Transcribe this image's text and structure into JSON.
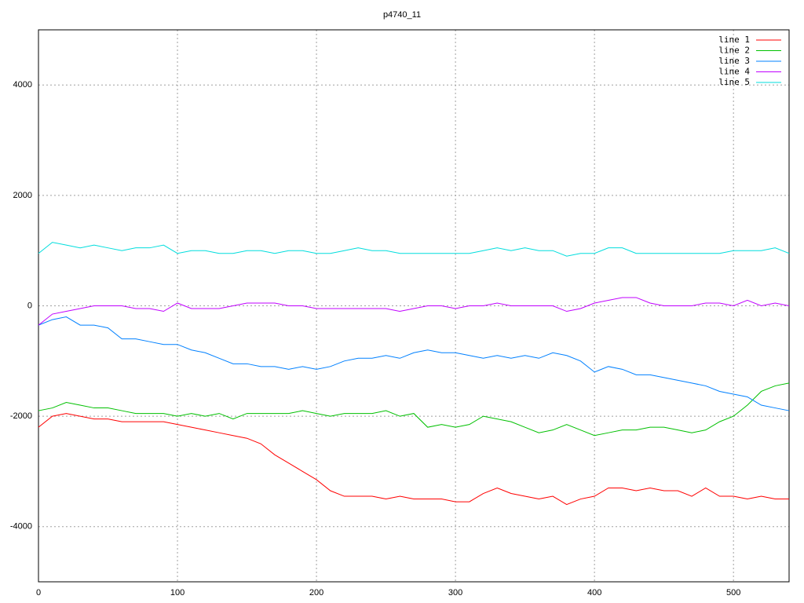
{
  "chart_data": {
    "type": "line",
    "title": "p4740_11",
    "x": [
      0,
      10,
      20,
      30,
      40,
      50,
      60,
      70,
      80,
      90,
      100,
      110,
      120,
      130,
      140,
      150,
      160,
      170,
      180,
      190,
      200,
      210,
      220,
      230,
      240,
      250,
      260,
      270,
      280,
      290,
      300,
      310,
      320,
      330,
      340,
      350,
      360,
      370,
      380,
      390,
      400,
      410,
      420,
      430,
      440,
      450,
      460,
      470,
      480,
      490,
      500,
      510,
      520,
      530,
      540
    ],
    "series": [
      {
        "name": "line 1",
        "color": "#ff0000",
        "values": [
          -2200,
          -2000,
          -1950,
          -2000,
          -2050,
          -2050,
          -2100,
          -2100,
          -2100,
          -2100,
          -2150,
          -2200,
          -2250,
          -2300,
          -2350,
          -2400,
          -2500,
          -2700,
          -2850,
          -3000,
          -3150,
          -3350,
          -3450,
          -3450,
          -3450,
          -3500,
          -3450,
          -3500,
          -3500,
          -3500,
          -3550,
          -3550,
          -3400,
          -3300,
          -3400,
          -3450,
          -3500,
          -3450,
          -3600,
          -3500,
          -3450,
          -3300,
          -3300,
          -3350,
          -3300,
          -3350,
          -3350,
          -3450,
          -3300,
          -3450,
          -3450,
          -3500,
          -3450,
          -3500,
          -3500
        ]
      },
      {
        "name": "line 2",
        "color": "#00c000",
        "values": [
          -1900,
          -1850,
          -1750,
          -1800,
          -1850,
          -1850,
          -1900,
          -1950,
          -1950,
          -1950,
          -2000,
          -1950,
          -2000,
          -1950,
          -2050,
          -1950,
          -1950,
          -1950,
          -1950,
          -1900,
          -1950,
          -2000,
          -1950,
          -1950,
          -1950,
          -1900,
          -2000,
          -1950,
          -2200,
          -2150,
          -2200,
          -2150,
          -2000,
          -2050,
          -2100,
          -2200,
          -2300,
          -2250,
          -2150,
          -2250,
          -2350,
          -2300,
          -2250,
          -2250,
          -2200,
          -2200,
          -2250,
          -2300,
          -2250,
          -2100,
          -2000,
          -1800,
          -1550,
          -1450,
          -1400
        ]
      },
      {
        "name": "line 3",
        "color": "#0080ff",
        "values": [
          -350,
          -250,
          -200,
          -350,
          -350,
          -400,
          -600,
          -600,
          -650,
          -700,
          -700,
          -800,
          -850,
          -950,
          -1050,
          -1050,
          -1100,
          -1100,
          -1150,
          -1100,
          -1150,
          -1100,
          -1000,
          -950,
          -950,
          -900,
          -950,
          -850,
          -800,
          -850,
          -850,
          -900,
          -950,
          -900,
          -950,
          -900,
          -950,
          -850,
          -900,
          -1000,
          -1200,
          -1100,
          -1150,
          -1250,
          -1250,
          -1300,
          -1350,
          -1400,
          -1450,
          -1550,
          -1600,
          -1650,
          -1800,
          -1850,
          -1900
        ]
      },
      {
        "name": "line 4",
        "color": "#c000ff",
        "values": [
          -350,
          -150,
          -100,
          -50,
          0,
          0,
          0,
          -50,
          -50,
          -100,
          50,
          -50,
          -50,
          -50,
          0,
          50,
          50,
          50,
          0,
          0,
          -50,
          -50,
          -50,
          -50,
          -50,
          -50,
          -100,
          -50,
          0,
          0,
          -50,
          0,
          0,
          50,
          0,
          0,
          0,
          0,
          -100,
          -50,
          50,
          100,
          150,
          150,
          50,
          0,
          0,
          0,
          50,
          50,
          0,
          100,
          0,
          50,
          0
        ]
      },
      {
        "name": "line 5",
        "color": "#00dddd",
        "values": [
          950,
          1150,
          1100,
          1050,
          1100,
          1050,
          1000,
          1050,
          1050,
          1100,
          950,
          1000,
          1000,
          950,
          950,
          1000,
          1000,
          950,
          1000,
          1000,
          950,
          950,
          1000,
          1050,
          1000,
          1000,
          950,
          950,
          950,
          950,
          950,
          950,
          1000,
          1050,
          1000,
          1050,
          1000,
          1000,
          900,
          950,
          950,
          1050,
          1050,
          950,
          950,
          950,
          950,
          950,
          950,
          950,
          1000,
          1000,
          1000,
          1050,
          950
        ]
      }
    ],
    "xlim": [
      0,
      540
    ],
    "ylim": [
      -5000,
      5000
    ],
    "xticks": [
      0,
      100,
      200,
      300,
      400,
      500
    ],
    "yticks": [
      -4000,
      -2000,
      0,
      2000,
      4000
    ],
    "grid": true,
    "legend": "top-right"
  }
}
